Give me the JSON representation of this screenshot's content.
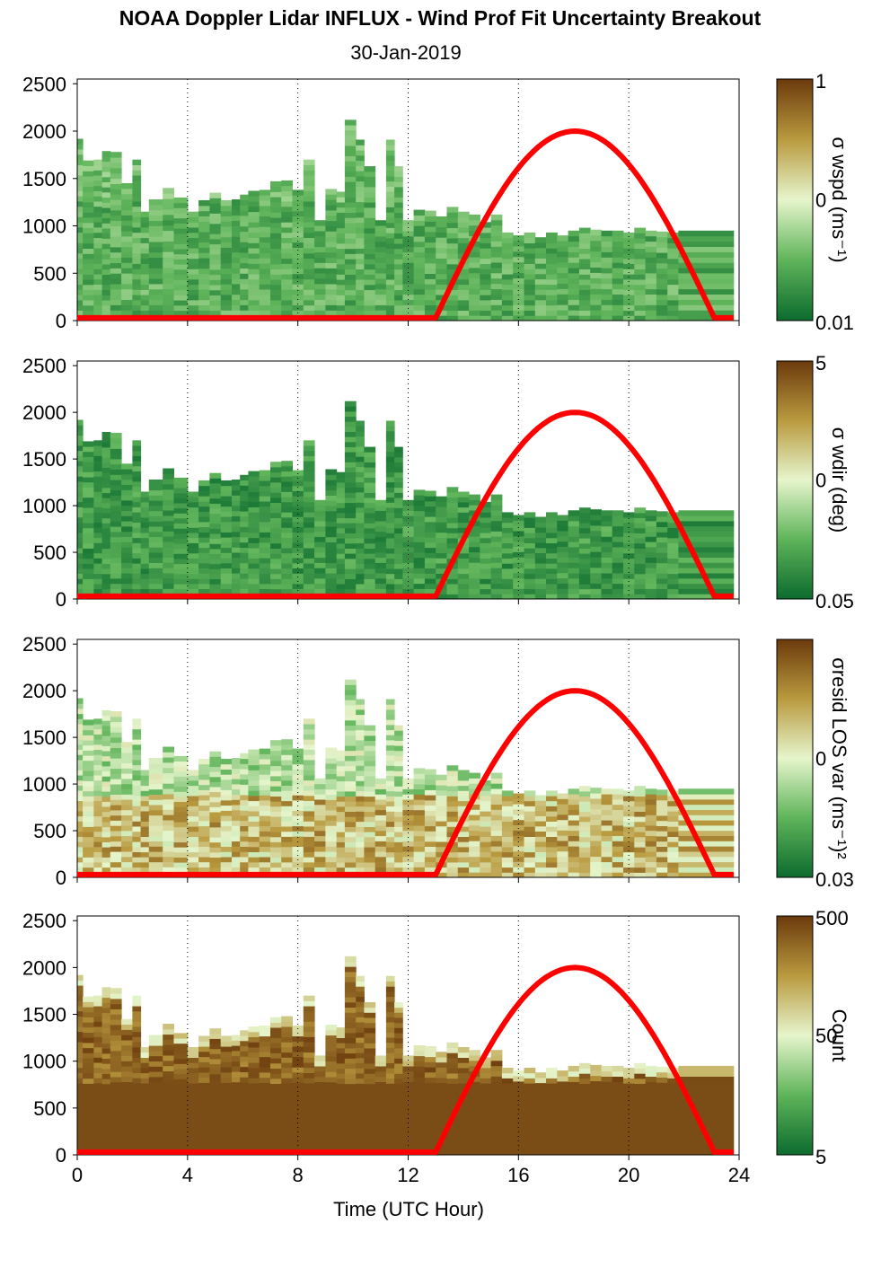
{
  "title": "NOAA Doppler Lidar INFLUX - Wind Prof Fit Uncertainty Breakout",
  "subtitle": "30-Jan-2019",
  "colors": {
    "low": "#0c6b2e",
    "mid": "#e6f5cc",
    "high": "#6b3a0c",
    "sun_curve": "#ff0000",
    "frame": "#000000"
  },
  "chart_data": [
    {
      "type": "heatmap",
      "panel": "wspd",
      "x_range": [
        0,
        24
      ],
      "ylim": [
        0,
        2550
      ],
      "yticks": [
        "0",
        "500",
        "1000",
        "1500",
        "2000",
        "2500"
      ],
      "xticks": [
        "0",
        "4",
        "8",
        "12",
        "16",
        "20",
        "24"
      ],
      "grid_x": [
        4,
        8,
        12,
        16,
        20,
        24
      ],
      "colorbar": {
        "label": "σ wspd (ms⁻¹)",
        "ticks": [
          "1",
          "0",
          "0.01"
        ],
        "scale": "log"
      },
      "data_top_m": [
        1920,
        1690,
        1700,
        1790,
        1780,
        1450,
        1700,
        1150,
        1280,
        1400,
        1300,
        1150,
        1270,
        1350,
        1270,
        1280,
        1330,
        1370,
        1380,
        1470,
        1480,
        1380,
        1700,
        1060,
        1390,
        1360,
        2120,
        1910,
        1630,
        1060,
        1910,
        1630,
        1060,
        1170,
        1160,
        1100,
        1200,
        1150,
        1120,
        1040,
        1120,
        930,
        900,
        930,
        880,
        930,
        900,
        950,
        980,
        960,
        950,
        950,
        930,
        980,
        950,
        940,
        930,
        950
      ],
      "annotation_colors": "mostly green (low σ), sparse tan/brown outliers"
    },
    {
      "type": "heatmap",
      "panel": "wdir",
      "x_range": [
        0,
        24
      ],
      "ylim": [
        0,
        2550
      ],
      "yticks": [
        "0",
        "500",
        "1000",
        "1500",
        "2000",
        "2500"
      ],
      "xticks": [
        "0",
        "4",
        "8",
        "12",
        "16",
        "20",
        "24"
      ],
      "grid_x": [
        4,
        8,
        12,
        16,
        20,
        24
      ],
      "colorbar": {
        "label": "σ wdir (deg)",
        "ticks": [
          "5",
          "0",
          "0.05"
        ],
        "scale": "log"
      },
      "data_top_m": [
        1920,
        1690,
        1700,
        1790,
        1780,
        1450,
        1700,
        1150,
        1280,
        1400,
        1300,
        1150,
        1270,
        1350,
        1270,
        1280,
        1330,
        1370,
        1380,
        1470,
        1480,
        1380,
        1700,
        1060,
        1390,
        1360,
        2120,
        1910,
        1630,
        1060,
        1910,
        1630,
        1060,
        1170,
        1160,
        1100,
        1200,
        1150,
        1120,
        1040,
        1120,
        930,
        900,
        930,
        880,
        930,
        900,
        950,
        980,
        960,
        950,
        950,
        930,
        980,
        950,
        940,
        930,
        950
      ],
      "annotation_colors": "mostly dark green (low σ)"
    },
    {
      "type": "heatmap",
      "panel": "resid",
      "x_range": [
        0,
        24
      ],
      "ylim": [
        0,
        2550
      ],
      "yticks": [
        "0",
        "500",
        "1000",
        "1500",
        "2000",
        "2500"
      ],
      "xticks": [
        "0",
        "4",
        "8",
        "12",
        "16",
        "20",
        "24"
      ],
      "grid_x": [
        4,
        8,
        12,
        16,
        20,
        24
      ],
      "colorbar": {
        "label": "σresid LOS var (ms⁻¹)²",
        "ticks": [
          "0",
          "0.03"
        ],
        "scale": "log"
      },
      "data_top_m": [
        1920,
        1690,
        1700,
        1790,
        1780,
        1450,
        1700,
        1150,
        1280,
        1400,
        1300,
        1150,
        1270,
        1350,
        1270,
        1280,
        1330,
        1370,
        1380,
        1470,
        1480,
        1380,
        1700,
        1060,
        1390,
        1360,
        2120,
        1910,
        1630,
        1060,
        1910,
        1630,
        1060,
        1170,
        1160,
        1100,
        1200,
        1150,
        1120,
        1040,
        1120,
        930,
        900,
        930,
        880,
        930,
        900,
        950,
        980,
        960,
        950,
        950,
        930,
        980,
        950,
        940,
        930,
        950
      ],
      "annotation_colors": "tan/brown near surface, pale green aloft"
    },
    {
      "type": "heatmap",
      "panel": "count",
      "x_range": [
        0,
        24
      ],
      "ylim": [
        0,
        2550
      ],
      "yticks": [
        "0",
        "500",
        "1000",
        "1500",
        "2000",
        "2500"
      ],
      "xticks": [
        "0",
        "4",
        "8",
        "12",
        "16",
        "20",
        "24"
      ],
      "xlabel": "Time (UTC Hour)",
      "grid_x": [
        4,
        8,
        12,
        16,
        20,
        24
      ],
      "colorbar": {
        "label": "Count",
        "ticks": [
          "500",
          "50",
          "5"
        ],
        "scale": "log"
      },
      "data_top_m": [
        1920,
        1690,
        1700,
        1790,
        1780,
        1450,
        1700,
        1150,
        1280,
        1400,
        1300,
        1150,
        1270,
        1350,
        1270,
        1280,
        1330,
        1370,
        1380,
        1470,
        1480,
        1380,
        1700,
        1060,
        1390,
        1360,
        2120,
        1910,
        1630,
        1060,
        1910,
        1630,
        1060,
        1170,
        1160,
        1100,
        1200,
        1150,
        1120,
        1040,
        1120,
        930,
        900,
        930,
        880,
        930,
        900,
        950,
        980,
        960,
        950,
        950,
        930,
        980,
        950,
        940,
        930,
        950
      ],
      "annotation_colors": "mostly dark brown (high count)"
    }
  ],
  "sun_curve": {
    "t_rise": 13.0,
    "t_set": 23.1,
    "t_peak": 18.0,
    "peak_m": 2000,
    "base_m": 30
  },
  "column_times_hr": [
    0.0,
    0.2,
    0.6,
    0.9,
    1.2,
    1.6,
    2.0,
    2.3,
    2.6,
    3.1,
    3.5,
    4.0,
    4.4,
    4.8,
    5.2,
    5.6,
    5.9,
    6.2,
    6.6,
    7.0,
    7.4,
    7.8,
    8.2,
    8.6,
    9.0,
    9.4,
    9.7,
    10.1,
    10.4,
    10.8,
    11.2,
    11.5,
    11.8,
    12.2,
    12.6,
    13.0,
    13.4,
    13.8,
    14.2,
    14.6,
    15.0,
    15.4,
    15.8,
    16.2,
    16.6,
    17.0,
    17.4,
    17.8,
    18.2,
    18.6,
    19.0,
    19.4,
    19.8,
    20.2,
    20.6,
    21.0,
    21.4,
    21.8
  ],
  "column_width_hr": 0.4,
  "data_end_hr": 23.8
}
